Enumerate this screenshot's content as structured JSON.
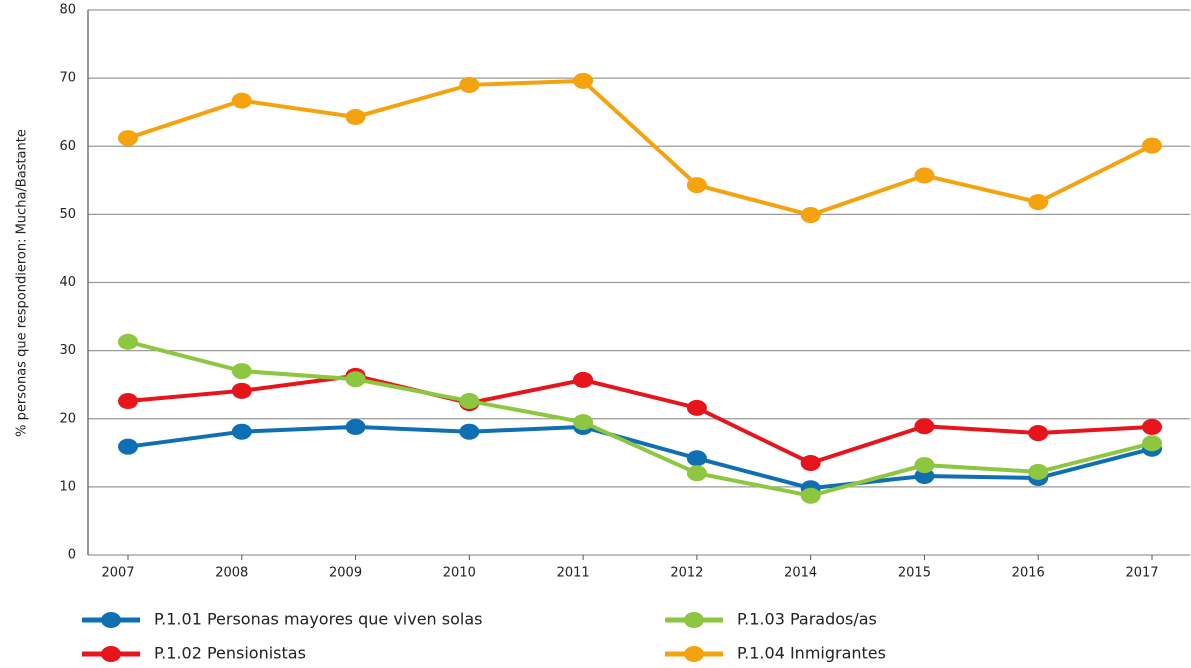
{
  "chart_data": {
    "type": "line",
    "y_label": "% personas que respondieron:  Mucha/Bastante",
    "categories": [
      "2007",
      "2008",
      "2009",
      "2010",
      "2011",
      "2012",
      "2014",
      "2015",
      "2016",
      "2017"
    ],
    "series": [
      {
        "name": "P.1.01 Personas mayores que viven solas",
        "color": "#0f6fb3",
        "values": [
          15.9,
          18.1,
          18.8,
          18.1,
          18.8,
          14.2,
          9.8,
          11.6,
          11.3,
          15.6
        ]
      },
      {
        "name": "P.1.02 Pensionistas",
        "color": "#e8141b",
        "values": [
          22.6,
          24.1,
          26.3,
          22.3,
          25.7,
          21.6,
          13.5,
          18.9,
          17.9,
          18.8
        ]
      },
      {
        "name": "P.1.03 Parados/as",
        "color": "#8dc63f",
        "values": [
          31.3,
          27.0,
          25.8,
          22.6,
          19.5,
          12.0,
          8.7,
          13.2,
          12.2,
          16.4
        ]
      },
      {
        "name": "P.1.04 Inmigrantes",
        "color": "#f5a20f",
        "values": [
          61.2,
          66.7,
          64.3,
          69.0,
          69.6,
          54.3,
          49.9,
          55.7,
          51.8,
          60.1
        ]
      }
    ],
    "ylim": [
      0,
      80
    ],
    "yticks": [
      0,
      10,
      20,
      30,
      40,
      50,
      60,
      70,
      80
    ],
    "grid": true
  }
}
